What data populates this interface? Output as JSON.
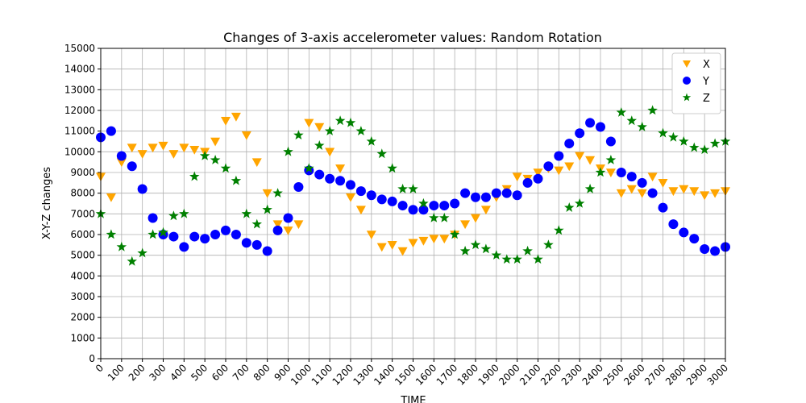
{
  "chart_data": {
    "type": "scatter",
    "title": "Changes of 3-axis accelerometer values: Random Rotation",
    "xlabel": "TIME",
    "ylabel": "X-Y-Z changes",
    "x": [
      0,
      50,
      100,
      150,
      200,
      250,
      300,
      350,
      400,
      450,
      500,
      550,
      600,
      650,
      700,
      750,
      800,
      850,
      900,
      950,
      1000,
      1050,
      1100,
      1150,
      1200,
      1250,
      1300,
      1350,
      1400,
      1450,
      1500,
      1550,
      1600,
      1650,
      1700,
      1750,
      1800,
      1850,
      1900,
      1950,
      2000,
      2050,
      2100,
      2150,
      2200,
      2250,
      2300,
      2350,
      2400,
      2450,
      2500,
      2550,
      2600,
      2650,
      2700,
      2750,
      2800,
      2850,
      2900,
      2950,
      3000
    ],
    "series": [
      {
        "name": "X",
        "color": "orange",
        "marker": "v",
        "values": [
          8800,
          7800,
          9500,
          10200,
          9900,
          10200,
          10300,
          9900,
          10200,
          10100,
          10000,
          10500,
          11500,
          11700,
          10800,
          9500,
          8000,
          6500,
          6200,
          6500,
          11400,
          11200,
          10000,
          9200,
          7800,
          7200,
          6000,
          5400,
          5500,
          5200,
          5600,
          5700,
          5800,
          5800,
          6000,
          6500,
          6800,
          7200,
          7800,
          8200,
          8800,
          8700,
          9000,
          9200,
          9100,
          9300,
          9800,
          9600,
          9200,
          9000,
          8000,
          8200,
          8000,
          8800,
          8500,
          8100,
          8200,
          8100,
          7900,
          8000,
          8100
        ]
      },
      {
        "name": "Y",
        "color": "blue",
        "marker": "o",
        "values": [
          10700,
          11000,
          9800,
          9300,
          8200,
          6800,
          6000,
          5900,
          5400,
          5900,
          5800,
          6000,
          6200,
          6000,
          5600,
          5500,
          5200,
          6200,
          6800,
          8300,
          9100,
          8900,
          8700,
          8600,
          8400,
          8100,
          7900,
          7700,
          7600,
          7400,
          7200,
          7200,
          7400,
          7400,
          7500,
          8000,
          7800,
          7800,
          8000,
          8000,
          7900,
          8500,
          8700,
          9300,
          9800,
          10400,
          10900,
          11400,
          11200,
          10500,
          9000,
          8800,
          8500,
          8000,
          7300,
          6500,
          6100,
          5800,
          5300,
          5200,
          5400
        ]
      },
      {
        "name": "Z",
        "color": "green",
        "marker": "*",
        "values": [
          7000,
          6000,
          5400,
          4700,
          5100,
          6000,
          6100,
          6900,
          7000,
          8800,
          9800,
          9600,
          9200,
          8600,
          7000,
          6500,
          7200,
          8000,
          10000,
          10800,
          9200,
          10300,
          11000,
          11500,
          11400,
          11000,
          10500,
          9900,
          9200,
          8200,
          8200,
          7500,
          6800,
          6800,
          6000,
          5200,
          5500,
          5300,
          5000,
          4800,
          4800,
          5200,
          4800,
          5500,
          6200,
          7300,
          7500,
          8200,
          9000,
          9600,
          11900,
          11500,
          11200,
          12000,
          10900,
          10700,
          10500,
          10200,
          10100,
          10400,
          10500
        ]
      }
    ],
    "xlim": [
      0,
      3000
    ],
    "xticks": [
      0,
      100,
      200,
      300,
      400,
      500,
      600,
      700,
      800,
      900,
      1000,
      1100,
      1200,
      1300,
      1400,
      1500,
      1600,
      1700,
      1800,
      1900,
      2000,
      2100,
      2200,
      2300,
      2400,
      2500,
      2600,
      2700,
      2800,
      2900,
      3000
    ],
    "ylim": [
      0,
      15000
    ],
    "yticks": [
      0,
      1000,
      2000,
      3000,
      4000,
      5000,
      6000,
      7000,
      8000,
      9000,
      10000,
      11000,
      12000,
      13000,
      14000,
      15000
    ],
    "grid": true,
    "legend": "upper right"
  }
}
